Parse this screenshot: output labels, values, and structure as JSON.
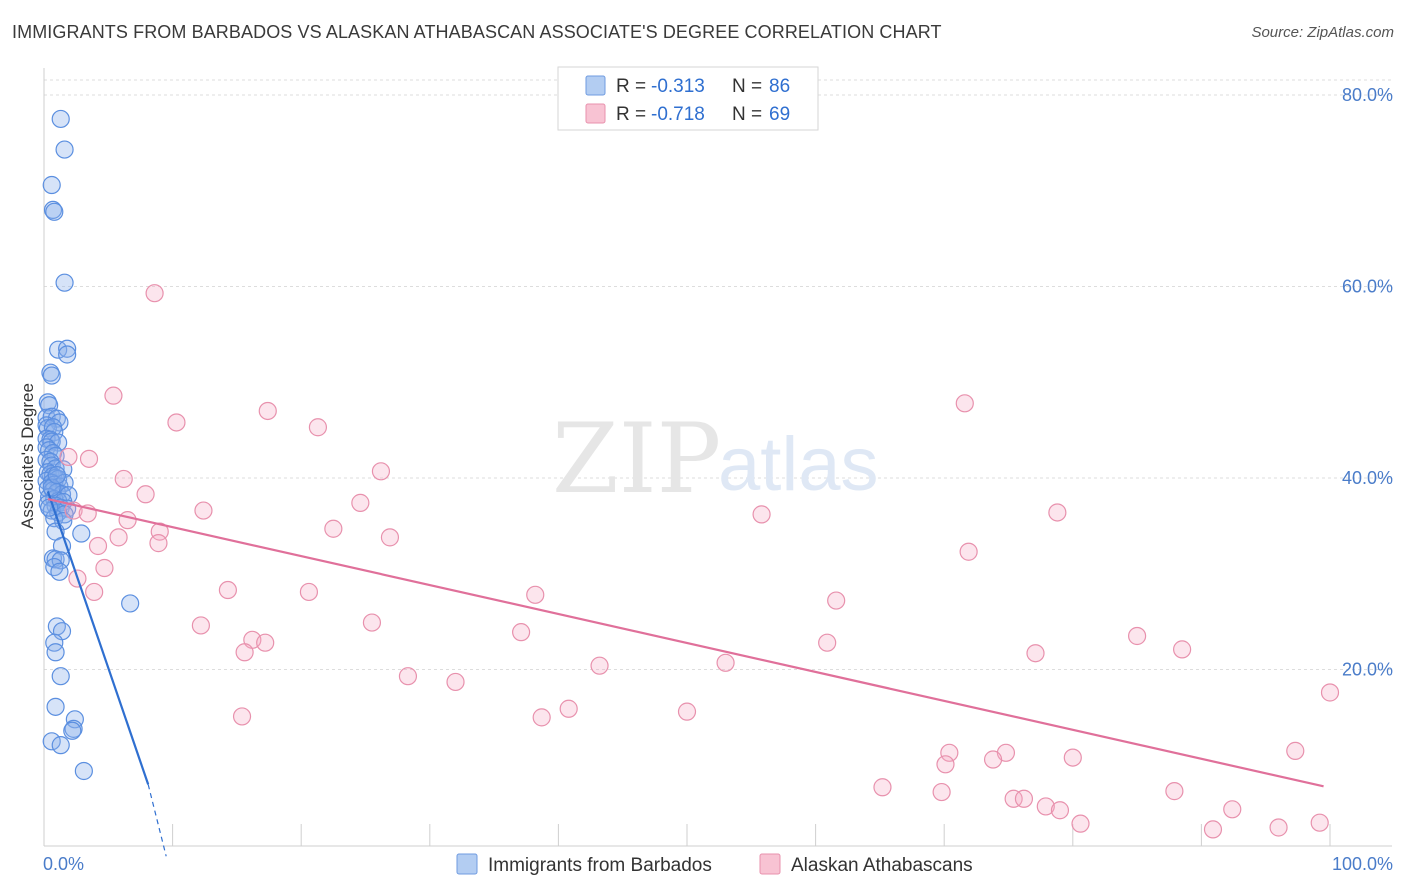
{
  "title": "IMMIGRANTS FROM BARBADOS VS ALASKAN ATHABASCAN ASSOCIATE'S DEGREE CORRELATION CHART",
  "source": "Source: ZipAtlas.com",
  "watermark": {
    "part1": "ZIP",
    "part2": "atlas"
  },
  "legend": {
    "rows": [
      {
        "r_label": "R = ",
        "r_value": "-0.313",
        "n_label": "N = ",
        "n_value": "86",
        "fill": "#b3cdf2",
        "stroke": "#6f9be0"
      },
      {
        "r_label": "R = ",
        "r_value": "-0.718",
        "n_label": "N = ",
        "n_value": "69",
        "fill": "#f8c3d3",
        "stroke": "#e891ad"
      }
    ]
  },
  "colors": {
    "blue_fill": "rgba(137,176,235,0.35)",
    "blue_stroke": "#5b8fe0",
    "blue_line": "#2f6fd0",
    "pink_fill": "rgba(244,170,195,0.30)",
    "pink_stroke": "#e891ad",
    "pink_line": "#e0709a",
    "grid": "#dddddd",
    "axis_text": "#4a7cc9"
  },
  "chart_data": {
    "type": "scatter",
    "title": "IMMIGRANTS FROM BARBADOS VS ALASKAN ATHABASCAN ASSOCIATE'S DEGREE CORRELATION CHART",
    "xlabel": "",
    "ylabel": "Associate's Degree",
    "xlim": [
      0,
      100
    ],
    "ylim": [
      0,
      80
    ],
    "x_tick_labels": [
      "0.0%",
      "100.0%"
    ],
    "y_ticks": [
      20,
      40,
      60,
      80
    ],
    "y_tick_labels": [
      "20.0%",
      "40.0%",
      "60.0%",
      "80.0%"
    ],
    "grid": true,
    "legend_position": "top-center",
    "series": [
      {
        "name": "Immigrants from Barbados",
        "color": "#5b8fe0",
        "trend": {
          "x": [
            0.3,
            8.1
          ],
          "y": [
            38.6,
            8.0
          ],
          "dashed_extension_to": [
            9.5,
            0.5
          ]
        },
        "points": [
          [
            1.3,
            77.5
          ],
          [
            1.6,
            74.3
          ],
          [
            0.6,
            70.6
          ],
          [
            0.7,
            68.0
          ],
          [
            0.8,
            67.8
          ],
          [
            1.6,
            60.4
          ],
          [
            1.1,
            53.4
          ],
          [
            1.8,
            53.5
          ],
          [
            1.8,
            52.9
          ],
          [
            0.5,
            51.0
          ],
          [
            0.6,
            50.7
          ],
          [
            0.3,
            47.9
          ],
          [
            0.4,
            47.6
          ],
          [
            0.2,
            46.3
          ],
          [
            0.6,
            46.4
          ],
          [
            1.0,
            46.2
          ],
          [
            1.2,
            45.8
          ],
          [
            0.2,
            45.5
          ],
          [
            0.3,
            45.2
          ],
          [
            0.7,
            45.3
          ],
          [
            0.8,
            44.8
          ],
          [
            0.2,
            44.1
          ],
          [
            0.5,
            44.0
          ],
          [
            0.6,
            43.8
          ],
          [
            1.1,
            43.7
          ],
          [
            0.2,
            43.2
          ],
          [
            0.4,
            42.9
          ],
          [
            0.7,
            42.6
          ],
          [
            0.9,
            42.3
          ],
          [
            0.2,
            41.9
          ],
          [
            0.5,
            41.7
          ],
          [
            0.6,
            41.3
          ],
          [
            0.9,
            41.0
          ],
          [
            1.5,
            40.9
          ],
          [
            0.3,
            40.6
          ],
          [
            0.5,
            40.4
          ],
          [
            0.7,
            40.2
          ],
          [
            0.9,
            40.0
          ],
          [
            1.1,
            39.9
          ],
          [
            0.2,
            39.7
          ],
          [
            0.6,
            39.5
          ],
          [
            0.8,
            39.3
          ],
          [
            1.2,
            39.1
          ],
          [
            1.6,
            39.5
          ],
          [
            0.3,
            38.9
          ],
          [
            0.7,
            38.7
          ],
          [
            1.0,
            38.5
          ],
          [
            1.4,
            38.3
          ],
          [
            1.9,
            38.2
          ],
          [
            0.4,
            38.0
          ],
          [
            0.8,
            37.8
          ],
          [
            1.1,
            37.6
          ],
          [
            1.5,
            37.5
          ],
          [
            0.3,
            37.3
          ],
          [
            0.9,
            37.1
          ],
          [
            1.3,
            36.9
          ],
          [
            1.8,
            36.8
          ],
          [
            0.6,
            36.6
          ],
          [
            1.1,
            36.4
          ],
          [
            1.6,
            36.2
          ],
          [
            0.8,
            35.8
          ],
          [
            1.5,
            35.5
          ],
          [
            0.9,
            34.4
          ],
          [
            2.9,
            34.2
          ],
          [
            1.4,
            32.9
          ],
          [
            0.7,
            31.6
          ],
          [
            0.9,
            31.5
          ],
          [
            1.3,
            31.4
          ],
          [
            0.8,
            30.7
          ],
          [
            1.2,
            30.2
          ],
          [
            6.7,
            26.9
          ],
          [
            1.0,
            24.5
          ],
          [
            1.4,
            24.0
          ],
          [
            0.8,
            22.8
          ],
          [
            0.9,
            21.8
          ],
          [
            1.3,
            19.3
          ],
          [
            0.9,
            16.1
          ],
          [
            2.4,
            14.8
          ],
          [
            2.3,
            13.8
          ],
          [
            2.2,
            13.6
          ],
          [
            0.6,
            12.5
          ],
          [
            1.3,
            12.1
          ],
          [
            3.1,
            9.4
          ],
          [
            0.6,
            39.0
          ],
          [
            1.0,
            40.3
          ],
          [
            0.4,
            36.9
          ]
        ]
      },
      {
        "name": "Alaskan Athabascans",
        "color": "#e891ad",
        "trend": {
          "x": [
            0.3,
            99.5
          ],
          "y": [
            37.8,
            7.8
          ]
        },
        "points": [
          [
            8.6,
            59.3
          ],
          [
            5.4,
            48.6
          ],
          [
            17.4,
            47.0
          ],
          [
            10.3,
            45.8
          ],
          [
            21.3,
            45.3
          ],
          [
            71.6,
            47.8
          ],
          [
            3.5,
            42.0
          ],
          [
            1.9,
            42.2
          ],
          [
            26.2,
            40.7
          ],
          [
            6.2,
            39.9
          ],
          [
            7.9,
            38.3
          ],
          [
            24.6,
            37.4
          ],
          [
            2.3,
            36.6
          ],
          [
            12.4,
            36.6
          ],
          [
            3.4,
            36.3
          ],
          [
            55.8,
            36.2
          ],
          [
            78.8,
            36.4
          ],
          [
            6.5,
            35.6
          ],
          [
            22.5,
            34.7
          ],
          [
            9.0,
            34.4
          ],
          [
            5.8,
            33.8
          ],
          [
            26.9,
            33.8
          ],
          [
            8.9,
            33.2
          ],
          [
            4.2,
            32.9
          ],
          [
            71.9,
            32.3
          ],
          [
            4.7,
            30.6
          ],
          [
            2.6,
            29.5
          ],
          [
            14.3,
            28.3
          ],
          [
            20.6,
            28.1
          ],
          [
            3.9,
            28.1
          ],
          [
            38.2,
            27.8
          ],
          [
            61.6,
            27.2
          ],
          [
            25.5,
            24.9
          ],
          [
            12.2,
            24.6
          ],
          [
            37.1,
            23.9
          ],
          [
            85.0,
            23.5
          ],
          [
            16.2,
            23.1
          ],
          [
            17.2,
            22.8
          ],
          [
            60.9,
            22.8
          ],
          [
            15.6,
            21.8
          ],
          [
            77.1,
            21.7
          ],
          [
            88.5,
            22.1
          ],
          [
            53.0,
            20.7
          ],
          [
            28.3,
            19.3
          ],
          [
            32.0,
            18.7
          ],
          [
            100.0,
            17.6
          ],
          [
            40.8,
            15.9
          ],
          [
            50.0,
            15.6
          ],
          [
            38.7,
            15.0
          ],
          [
            15.4,
            15.1
          ],
          [
            70.4,
            11.3
          ],
          [
            74.8,
            11.3
          ],
          [
            97.3,
            11.5
          ],
          [
            70.1,
            10.1
          ],
          [
            73.8,
            10.6
          ],
          [
            80.0,
            10.8
          ],
          [
            65.2,
            7.7
          ],
          [
            87.9,
            7.3
          ],
          [
            75.4,
            6.5
          ],
          [
            76.2,
            6.5
          ],
          [
            77.9,
            5.7
          ],
          [
            79.0,
            5.3
          ],
          [
            80.6,
            3.9
          ],
          [
            92.4,
            5.4
          ],
          [
            99.2,
            4.0
          ],
          [
            90.9,
            3.3
          ],
          [
            96.0,
            3.5
          ],
          [
            69.8,
            7.2
          ],
          [
            43.2,
            20.4
          ]
        ]
      }
    ]
  }
}
